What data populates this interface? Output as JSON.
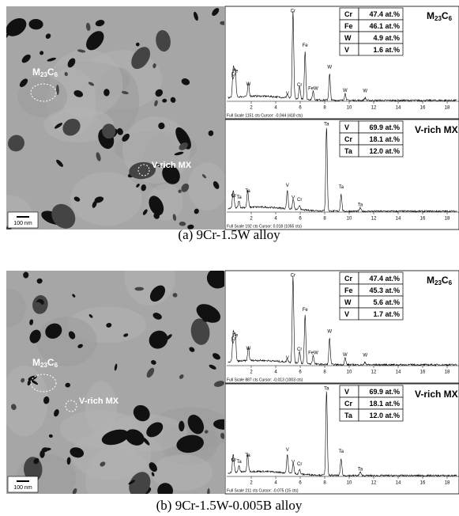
{
  "panels": [
    {
      "caption": "(a) 9Cr-1.5W alloy",
      "image": {
        "scale_bar": "100 nm",
        "m23c6": [
          "M",
          "23",
          "C",
          "6"
        ],
        "mx": "V-rich MX"
      },
      "spectra": [
        {
          "phase": [
            "M",
            "23",
            "C",
            "6"
          ],
          "table": [
            [
              "Cr",
              "47.4 at.%"
            ],
            [
              "Fe",
              "46.1 at.%"
            ],
            [
              "W",
              "4.9 at.%"
            ],
            [
              "V",
              "1.6 at.%"
            ]
          ],
          "peaks": [
            "Fe",
            "Cr",
            "W",
            "V",
            "V",
            "Cr",
            "Cr",
            "Fe",
            "FeW",
            "W",
            "W",
            "W"
          ],
          "xticks": [
            2,
            4,
            6,
            8,
            10,
            12,
            14,
            16,
            18
          ],
          "footer": "Full Scale 1151 cts Cursor: -0.044 (418 cts)"
        },
        {
          "phase": "V-rich MX",
          "table": [
            [
              "V",
              "69.9 at.%"
            ],
            [
              "Cr",
              "18.1 at.%"
            ],
            [
              "Ta",
              "12.0 at.%"
            ]
          ],
          "peaks": [
            "V",
            "Cr",
            "Ta",
            "V",
            "V",
            "Cr",
            "Ta",
            "Ta",
            "Ta",
            "Ta"
          ],
          "xticks": [
            2,
            4,
            6,
            8,
            10,
            12,
            14,
            16,
            18
          ],
          "footer": "Full Scale 192 cts Cursor: 0.018 (1055 cts)"
        }
      ]
    },
    {
      "caption": "(b) 9Cr-1.5W-0.005B alloy",
      "image": {
        "scale_bar": "100 nm",
        "m23c6": [
          "M",
          "23",
          "C",
          "6"
        ],
        "mx": "V-rich MX"
      },
      "spectra": [
        {
          "phase": [
            "M",
            "23",
            "C",
            "6"
          ],
          "table": [
            [
              "Cr",
              "47.4 at.%"
            ],
            [
              "Fe",
              "45.3 at.%"
            ],
            [
              "W",
              "5.6 at.%"
            ],
            [
              "V",
              "1.7 at.%"
            ]
          ],
          "peaks": [
            "Fe",
            "Cr",
            "W",
            "V",
            "V",
            "Cr",
            "Cr",
            "Fe",
            "FeW",
            "W",
            "W",
            "W"
          ],
          "xticks": [
            2,
            4,
            6,
            8,
            10,
            12,
            14,
            16,
            18
          ],
          "footer": "Full Scale 887 cts Cursor: -0.013 (1003 cts)"
        },
        {
          "phase": "V-rich MX",
          "table": [
            [
              "V",
              "69.9 at.%"
            ],
            [
              "Cr",
              "18.1 at.%"
            ],
            [
              "Ta",
              "12.0 at.%"
            ]
          ],
          "peaks": [
            "V",
            "Cr",
            "Ta",
            "V",
            "V",
            "Cr",
            "Ta",
            "Ta",
            "Ta",
            "Ta"
          ],
          "xticks": [
            2,
            4,
            6,
            8,
            10,
            12,
            14,
            16,
            18
          ],
          "footer": "Full Scale 211 cts Cursor: -0.075 (15 cts)"
        }
      ]
    }
  ]
}
